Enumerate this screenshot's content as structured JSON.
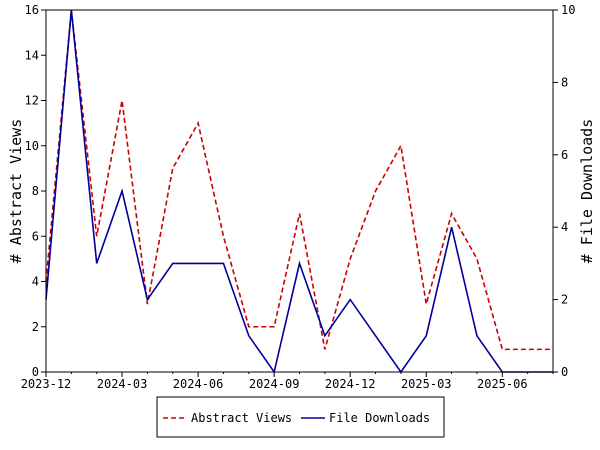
{
  "chart_data": {
    "type": "line",
    "x": [
      "2023-12",
      "2024-01",
      "2024-02",
      "2024-03",
      "2024-04",
      "2024-05",
      "2024-06",
      "2024-07",
      "2024-08",
      "2024-09",
      "2024-10",
      "2024-11",
      "2024-12",
      "2025-01",
      "2025-02",
      "2025-03",
      "2025-04",
      "2025-05",
      "2025-06",
      "2025-07",
      "2025-08"
    ],
    "x_tick_labels": [
      "2023-12",
      "2024-03",
      "2024-06",
      "2024-09",
      "2024-12",
      "2025-03",
      "2025-06"
    ],
    "ylabel_left": "# Abstract Views",
    "ylabel_right": "# File Downloads",
    "ylim_left": [
      0,
      16
    ],
    "ylim_right": [
      0,
      10
    ],
    "y_ticks_left": [
      0,
      2,
      4,
      6,
      8,
      10,
      12,
      14,
      16
    ],
    "y_ticks_right": [
      0,
      2,
      4,
      6,
      8,
      10
    ],
    "grid": false,
    "legend_position": "bottom",
    "series": [
      {
        "name": "Abstract Views",
        "axis": "left",
        "color": "#cc0000",
        "style": "dashed",
        "values": [
          4,
          16,
          6,
          12,
          3,
          9,
          11,
          6,
          2,
          2,
          7,
          1,
          5,
          8,
          10,
          3,
          7,
          5,
          1,
          1,
          1
        ]
      },
      {
        "name": "File Downloads",
        "axis": "right",
        "color": "#000099",
        "style": "solid",
        "values": [
          2,
          10,
          3,
          5,
          2,
          3,
          3,
          3,
          1,
          0,
          3,
          1,
          2,
          1,
          0,
          1,
          4,
          1,
          0,
          0,
          0
        ]
      }
    ]
  }
}
